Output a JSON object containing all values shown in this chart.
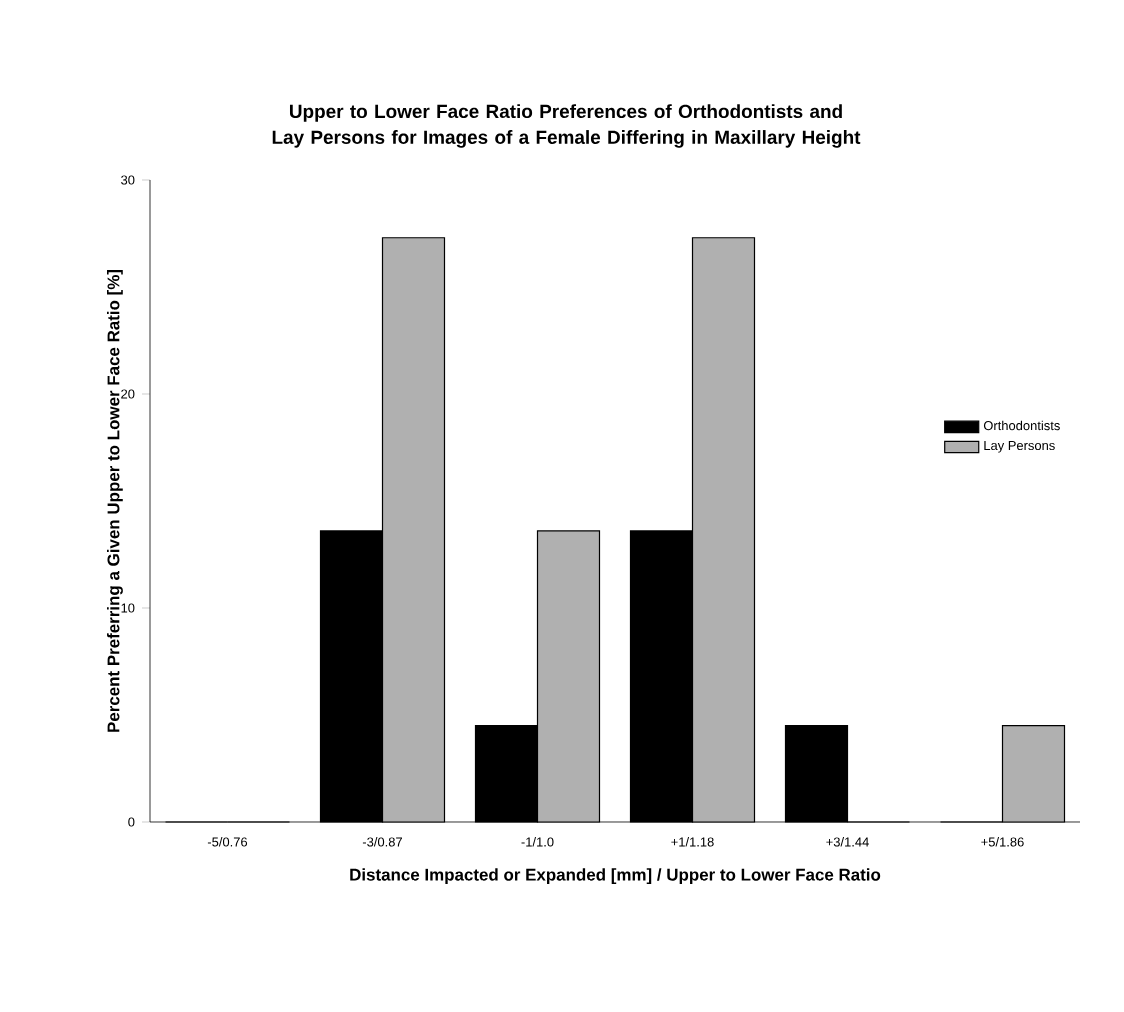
{
  "chart_data": {
    "type": "bar",
    "title": "Upper to Lower Face Ratio Preferences of Orthodontists and Lay Persons for Images of a Female Differing in Maxillary Height",
    "xlabel": "Distance Impacted or Expanded [mm] / Upper to Lower Face Ratio",
    "ylabel": "Percent Preferring a Given Upper to Lower Face Ratio [%]",
    "categories": [
      "-5/0.76",
      "-3/0.87",
      "-1/1.0",
      "+1/1.18",
      "+3/1.44",
      "+5/1.86"
    ],
    "series": [
      {
        "name": "Orthodontists",
        "color": "#000000",
        "values": [
          0,
          13.6,
          4.5,
          13.6,
          4.5,
          0
        ]
      },
      {
        "name": "Lay Persons",
        "color": "#b0b0b0",
        "values": [
          0,
          27.3,
          13.6,
          27.3,
          0,
          4.5
        ]
      }
    ],
    "ylim": [
      0,
      30
    ],
    "yticks": [
      0,
      10,
      20,
      30
    ],
    "legend": "right"
  }
}
